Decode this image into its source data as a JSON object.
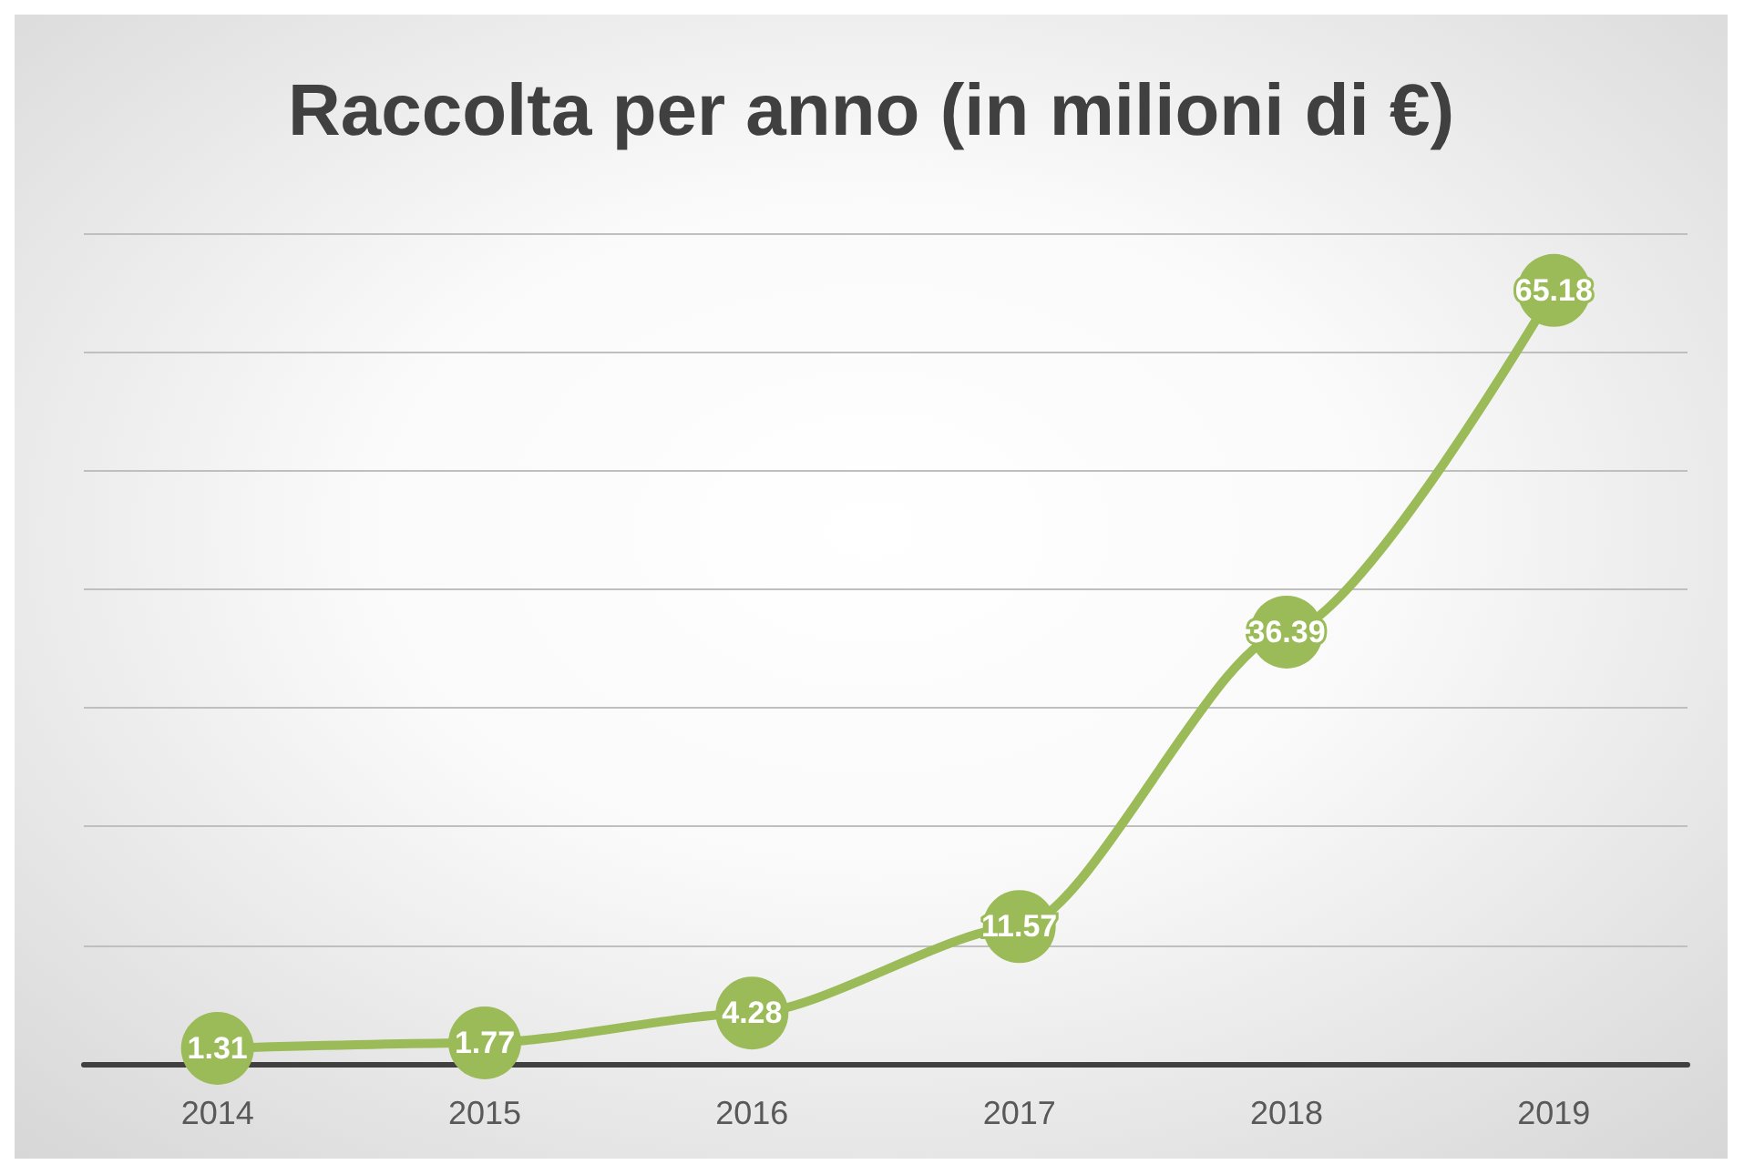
{
  "chart_data": {
    "type": "line",
    "title": "Raccolta per anno (in milioni di €)",
    "categories": [
      "2014",
      "2015",
      "2016",
      "2017",
      "2018",
      "2019"
    ],
    "series": [
      {
        "color": "#9bbb59",
        "values": [
          1.31,
          1.77,
          4.28,
          11.57,
          36.39,
          65.18
        ]
      }
    ],
    "ylim": [
      0,
      70
    ],
    "yticks": [
      0,
      10,
      20,
      30,
      40,
      50,
      60,
      70
    ],
    "grid": "y",
    "tick_labels": "x",
    "marker": "circle",
    "line_style": "solid",
    "data_labels": true
  }
}
